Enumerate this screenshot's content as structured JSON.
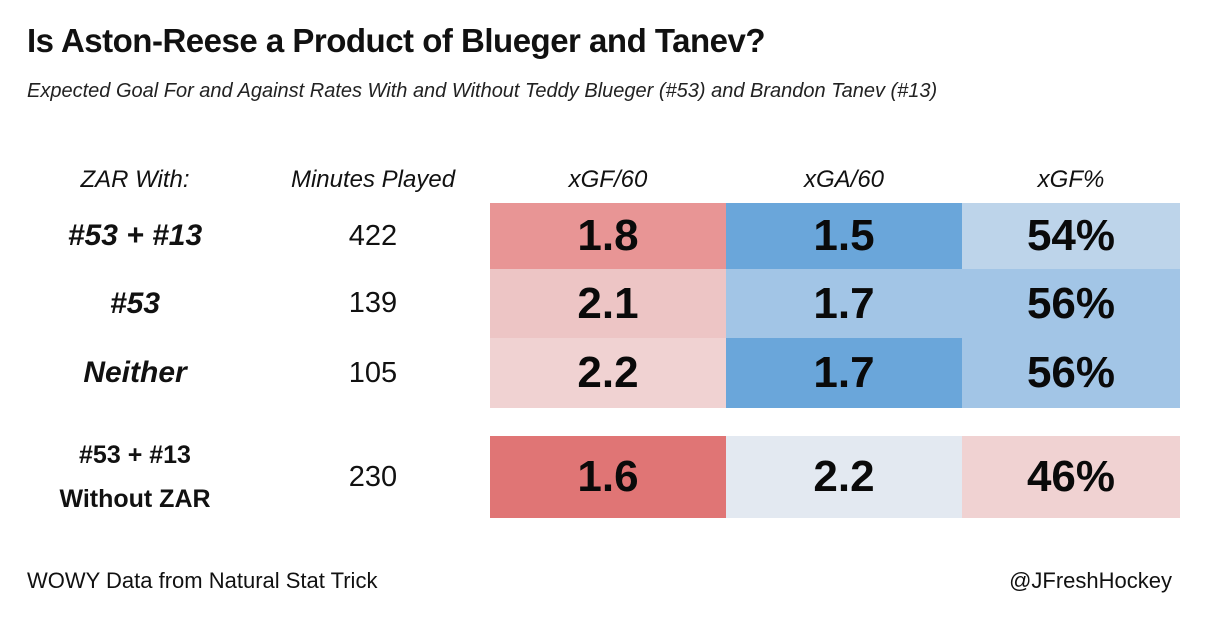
{
  "title": "Is Aston-Reese a Product of Blueger and Tanev?",
  "subtitle": "Expected Goal For and Against Rates With and Without Teddy Blueger (#53) and Brandon Tanev (#13)",
  "headers": {
    "zar_with": "ZAR With:",
    "minutes": "Minutes Played",
    "xgf60": "xGF/60",
    "xga60": "xGA/60",
    "xgf_pct": "xGF%"
  },
  "colors": {
    "red_strong": "#e07575",
    "red_medium": "#e89595",
    "red_light": "#edc5c5",
    "red_faint": "#f0d2d2",
    "blue_strong": "#6aa6da",
    "blue_medium": "#a2c5e6",
    "blue_light": "#bdd4ea",
    "blue_faint": "#e3e9f1"
  },
  "chart_data": {
    "type": "table",
    "title": "Is Aston-Reese a Product of Blueger and Tanev?",
    "subtitle": "Expected Goal For and Against Rates With and Without Teddy Blueger (#53) and Brandon Tanev (#13)",
    "columns": [
      "ZAR With:",
      "Minutes Played",
      "xGF/60",
      "xGA/60",
      "xGF%"
    ],
    "rows": [
      {
        "label": "#53 + #13",
        "minutes": "422",
        "xgf60": "1.8",
        "xga60": "1.5",
        "xgf_pct": "54%",
        "colors": {
          "xgf60": "#e89595",
          "xga60": "#6aa6da",
          "xgf_pct": "#bdd4ea"
        }
      },
      {
        "label": "#53",
        "minutes": "139",
        "xgf60": "2.1",
        "xga60": "1.7",
        "xgf_pct": "56%",
        "colors": {
          "xgf60": "#edc5c5",
          "xga60": "#a2c5e6",
          "xgf_pct": "#a2c5e6"
        }
      },
      {
        "label": "Neither",
        "minutes": "105",
        "xgf60": "2.2",
        "xga60": "1.7",
        "xgf_pct": "56%",
        "colors": {
          "xgf60": "#f0d2d2",
          "xga60": "#6aa6da",
          "xgf_pct": "#a2c5e6"
        }
      },
      {
        "label_line1": "#53 + #13",
        "label_line2": "Without ZAR",
        "minutes": "230",
        "xgf60": "1.6",
        "xga60": "2.2",
        "xgf_pct": "46%",
        "colors": {
          "xgf60": "#e07575",
          "xga60": "#e3e9f1",
          "xgf_pct": "#f0d2d2"
        }
      }
    ]
  },
  "footer": {
    "source": "WOWY Data from Natural Stat Trick",
    "credit": "@JFreshHockey"
  }
}
